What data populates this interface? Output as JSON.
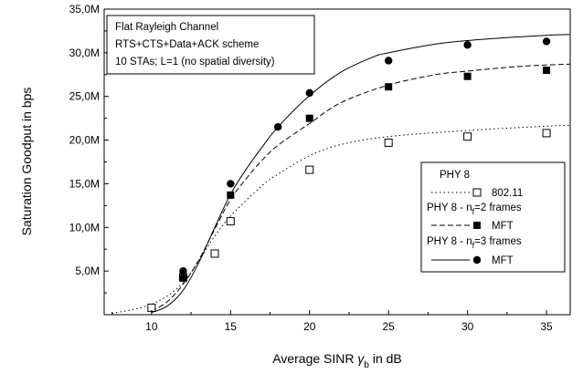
{
  "chart_data": {
    "type": "line",
    "xlabel_prefix": "Average SINR ",
    "xlabel_symbol": "γ",
    "xlabel_sub": "b",
    "xlabel_suffix": " in dB",
    "ylabel": "Saturation Goodput in bps",
    "xlim": [
      7,
      36.5
    ],
    "ylim": [
      0,
      35000000
    ],
    "x_ticks": [
      10,
      15,
      20,
      25,
      30,
      35
    ],
    "y_ticks": [
      5000000,
      10000000,
      15000000,
      20000000,
      25000000,
      30000000,
      35000000
    ],
    "y_tick_labels": [
      "5,0M",
      "10,0M",
      "15,0M",
      "20,0M",
      "25,0M",
      "30,0M",
      "35,0M"
    ],
    "info_box": [
      "Flat Rayleigh Channel",
      "RTS+CTS+Data+ACK scheme",
      "10 STAs; L=1 (no spatial diversity)"
    ],
    "legend": {
      "placement": "bottom-right",
      "groups": [
        {
          "title": "PHY 8",
          "title_parts": [],
          "entry": "802.11"
        },
        {
          "title": "",
          "title_parts": [
            "PHY 8 - n",
            "f",
            "=2 frames"
          ],
          "entry": "MFT"
        },
        {
          "title": "",
          "title_parts": [
            "PHY 8 - n",
            "f",
            "=3 frames"
          ],
          "entry": "MFT"
        }
      ]
    },
    "series": [
      {
        "line_style": "dotted",
        "marker": "open-square",
        "curve": [
          [
            7.5,
            150000
          ],
          [
            10,
            1200000
          ],
          [
            12,
            3700000
          ],
          [
            14,
            9000000
          ],
          [
            15,
            11300000
          ],
          [
            17,
            14800000
          ],
          [
            18,
            16100000
          ],
          [
            20,
            18200000
          ],
          [
            22,
            19500000
          ],
          [
            25,
            20400000
          ],
          [
            30,
            21100000
          ],
          [
            35,
            21600000
          ],
          [
            36.5,
            21700000
          ]
        ],
        "points": [
          [
            10,
            800000
          ],
          [
            12,
            4300000
          ],
          [
            14,
            7000000
          ],
          [
            15,
            10700000
          ],
          [
            20,
            16600000
          ],
          [
            25,
            19700000
          ],
          [
            30,
            20400000
          ],
          [
            35,
            20800000
          ]
        ]
      },
      {
        "line_style": "dashed",
        "marker": "filled-square",
        "curve": [
          [
            10,
            400000
          ],
          [
            11,
            1500000
          ],
          [
            12,
            3500000
          ],
          [
            13,
            6300000
          ],
          [
            14,
            9800000
          ],
          [
            15,
            13200000
          ],
          [
            16,
            15600000
          ],
          [
            17,
            17700000
          ],
          [
            18,
            19400000
          ],
          [
            20,
            21900000
          ],
          [
            22,
            24300000
          ],
          [
            25,
            26300000
          ],
          [
            28,
            27500000
          ],
          [
            30,
            27900000
          ],
          [
            33,
            28400000
          ],
          [
            35,
            28600000
          ],
          [
            36.5,
            28700000
          ]
        ],
        "points": [
          [
            12,
            4200000
          ],
          [
            15,
            13700000
          ],
          [
            20,
            22500000
          ],
          [
            25,
            26100000
          ],
          [
            30,
            27300000
          ],
          [
            35,
            28000000
          ]
        ]
      },
      {
        "line_style": "solid",
        "marker": "filled-circle",
        "curve": [
          [
            10,
            250000
          ],
          [
            11,
            1000000
          ],
          [
            12,
            2800000
          ],
          [
            13,
            6000000
          ],
          [
            14,
            10000000
          ],
          [
            15,
            13800000
          ],
          [
            16,
            16700000
          ],
          [
            17,
            19200000
          ],
          [
            18,
            21500000
          ],
          [
            20,
            25100000
          ],
          [
            22,
            27800000
          ],
          [
            24,
            29500000
          ],
          [
            25,
            30000000
          ],
          [
            28,
            31000000
          ],
          [
            30,
            31400000
          ],
          [
            33,
            31800000
          ],
          [
            35,
            32000000
          ],
          [
            36.5,
            32100000
          ]
        ],
        "points": [
          [
            12,
            5000000
          ],
          [
            15,
            15000000
          ],
          [
            18,
            21500000
          ],
          [
            20,
            25400000
          ],
          [
            25,
            29100000
          ],
          [
            30,
            30900000
          ],
          [
            35,
            31300000
          ]
        ]
      }
    ]
  }
}
